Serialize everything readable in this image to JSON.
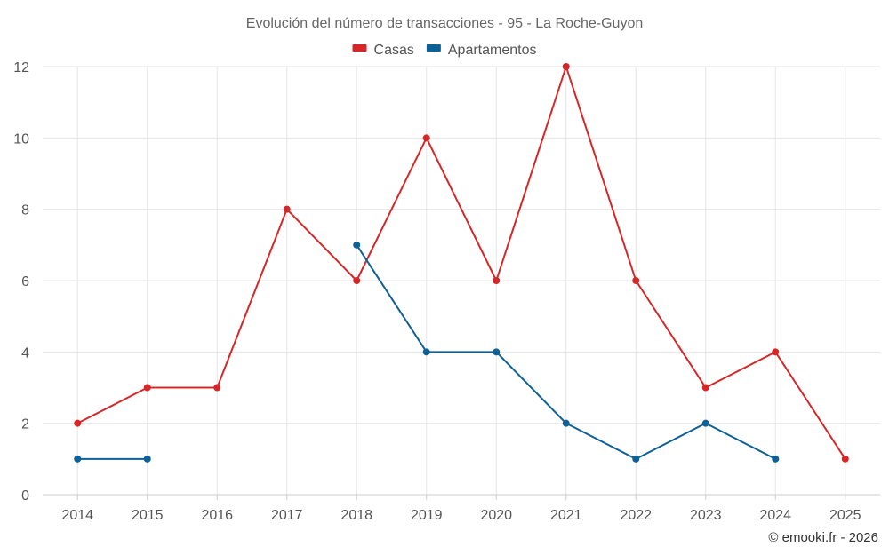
{
  "chart_data": {
    "type": "line",
    "title": "Evolución del número de transacciones - 95 - La Roche-Guyon",
    "x": [
      "2014",
      "2015",
      "2016",
      "2017",
      "2018",
      "2019",
      "2020",
      "2021",
      "2022",
      "2023",
      "2024",
      "2025"
    ],
    "series": [
      {
        "name": "Casas",
        "color": "#d62728",
        "values": [
          2,
          3,
          3,
          8,
          6,
          10,
          6,
          12,
          6,
          3,
          4,
          1
        ]
      },
      {
        "name": "Apartamentos",
        "color": "#0e6196",
        "values": [
          1,
          1,
          null,
          null,
          7,
          4,
          4,
          2,
          1,
          2,
          1,
          null
        ]
      }
    ],
    "yticks": [
      "0",
      "2",
      "4",
      "6",
      "8",
      "10",
      "12"
    ],
    "ylim": [
      0,
      12
    ],
    "grid": true,
    "legend": "top-center"
  },
  "credit": "© emooki.fr - 2026"
}
